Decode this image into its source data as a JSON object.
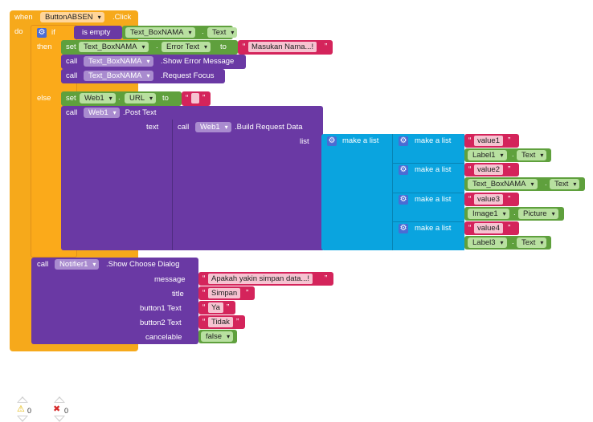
{
  "event": {
    "when": "when",
    "component": "ButtonABSEN",
    "event_name": ".Click",
    "do": "do"
  },
  "if_block": {
    "if": "if",
    "then": "then",
    "else": "else",
    "condition": {
      "op": "is empty",
      "component": "Text_BoxNAMA",
      "property": "Text"
    }
  },
  "then_blocks": {
    "set": {
      "kw_set": "set",
      "component": "Text_BoxNAMA",
      "property": "Error Text",
      "to": "to",
      "value": "Masukan Nama...!"
    },
    "call1": {
      "kw_call": "call",
      "component": "Text_BoxNAMA",
      "method": ".Show Error Message"
    },
    "call2": {
      "kw_call": "call",
      "component": "Text_BoxNAMA",
      "method": ".Request Focus"
    }
  },
  "else_blocks": {
    "set": {
      "kw_set": "set",
      "component": "Web1",
      "property": "URL",
      "to": "to",
      "value": ""
    },
    "post": {
      "kw_call": "call",
      "component": "Web1",
      "method": ".Post Text",
      "arg_text": "text"
    },
    "build": {
      "kw_call": "call",
      "component": "Web1",
      "method": ".Build Request Data",
      "arg_list": "list",
      "outer_list": "make a list",
      "inner": [
        {
          "label": "make a list",
          "key": "value1",
          "component": "Label1",
          "property": "Text"
        },
        {
          "label": "make a list",
          "key": "value2",
          "component": "Text_BoxNAMA",
          "property": "Text"
        },
        {
          "label": "make a list",
          "key": "value3",
          "component": "Image1",
          "property": "Picture"
        },
        {
          "label": "make a list",
          "key": "value4",
          "component": "Label3",
          "property": "Text"
        }
      ]
    }
  },
  "dialog": {
    "kw_call": "call",
    "component": "Notifier1",
    "method": ".Show Choose Dialog",
    "params": {
      "message_label": "message",
      "message": "Apakah yakin simpan data...!",
      "title_label": "title",
      "title": "Simpan",
      "button1_label": "button1 Text",
      "button1": "Ya",
      "button2_label": "button2 Text",
      "button2": "Tidak",
      "cancelable_label": "cancelable",
      "cancelable": "false"
    }
  },
  "status": {
    "warnings": "0",
    "errors": "0"
  },
  "colors": {
    "event": "#f6a91b",
    "logic": "#5fa03d",
    "component": "#6a39a4",
    "list": "#0aa4df",
    "text": "#d4245b"
  }
}
